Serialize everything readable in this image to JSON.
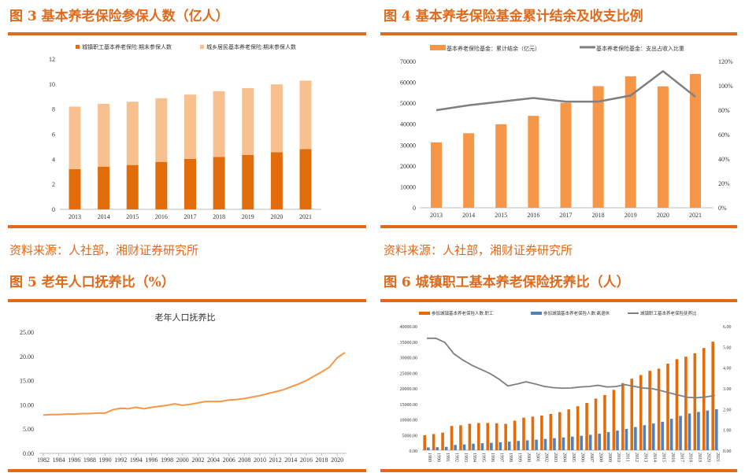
{
  "colors": {
    "accent": "#e0691a",
    "dark_orange": "#e36c0a",
    "light_orange": "#f9c08f",
    "bar_orange": "#f79646",
    "gray": "#7f7f7f",
    "blue": "#4f81bd"
  },
  "fig3": {
    "heading": "图 3 基本养老保险参保人数（亿人）",
    "source": "资料来源：人社部，湘财证券研究所"
  },
  "fig4": {
    "heading": "图 4 基本养老保险基金累计结余及收支比例",
    "source": "资料来源：人社部，湘财证券研究所"
  },
  "fig5": {
    "heading": "图 5 老年人口抚养比（%）"
  },
  "fig6": {
    "heading": "图 6 城镇职工基本养老保险抚养比（人）"
  },
  "chart_data": [
    {
      "type": "bar",
      "stacked": true,
      "title": "",
      "categories": [
        "2013",
        "2014",
        "2015",
        "2016",
        "2017",
        "2018",
        "2019",
        "2020",
        "2021"
      ],
      "series": [
        {
          "name": "城镇职工基本养老保险:期末参保人数",
          "values": [
            3.22,
            3.41,
            3.54,
            3.79,
            4.03,
            4.19,
            4.35,
            4.56,
            4.81
          ]
        },
        {
          "name": "城乡居民基本养老保险:期末参保人数",
          "values": [
            4.98,
            5.01,
            5.05,
            5.08,
            5.13,
            5.24,
            5.33,
            5.42,
            5.47
          ]
        }
      ],
      "ylim": [
        0,
        12
      ],
      "yticks": [
        "0",
        "2",
        "4",
        "6",
        "8",
        "10",
        "12"
      ],
      "legend": "top",
      "grid": false
    },
    {
      "type": "bar+line",
      "title": "",
      "categories": [
        "2013",
        "2014",
        "2015",
        "2016",
        "2017",
        "2018",
        "2019",
        "2020",
        "2021"
      ],
      "series": [
        {
          "name": "基本养老保险基金：累计结余（亿元）",
          "type": "bar",
          "axis": "left",
          "values": [
            31275,
            35645,
            39937,
            43965,
            50202,
            58152,
            62873,
            58075,
            63970
          ]
        },
        {
          "name": "基本养老保险基金：支出占收入比重",
          "type": "line",
          "axis": "right",
          "values": [
            80,
            84,
            87,
            90,
            87,
            87,
            92,
            112,
            91
          ]
        }
      ],
      "ylim": [
        0,
        70000
      ],
      "yticks": [
        "0",
        "10000",
        "20000",
        "30000",
        "40000",
        "50000",
        "60000",
        "70000"
      ],
      "y2lim": [
        0,
        120
      ],
      "y2ticks": [
        "0%",
        "20%",
        "40%",
        "60%",
        "80%",
        "100%",
        "120%"
      ],
      "legend": "top",
      "grid": false
    },
    {
      "type": "line",
      "title": "老年人口抚养比",
      "x": [
        1982,
        1983,
        1984,
        1985,
        1986,
        1987,
        1988,
        1989,
        1990,
        1991,
        1992,
        1993,
        1994,
        1995,
        1996,
        1997,
        1998,
        1999,
        2000,
        2001,
        2002,
        2003,
        2004,
        2005,
        2006,
        2007,
        2008,
        2009,
        2010,
        2011,
        2012,
        2013,
        2014,
        2015,
        2016,
        2017,
        2018,
        2019,
        2020,
        2021
      ],
      "values": [
        7.9,
        8.0,
        8.0,
        8.1,
        8.1,
        8.2,
        8.2,
        8.3,
        8.3,
        9.0,
        9.3,
        9.2,
        9.5,
        9.2,
        9.5,
        9.7,
        9.9,
        10.2,
        9.9,
        10.1,
        10.4,
        10.7,
        10.7,
        10.7,
        11.0,
        11.1,
        11.3,
        11.6,
        11.9,
        12.3,
        12.7,
        13.1,
        13.7,
        14.3,
        15.0,
        15.9,
        16.8,
        17.8,
        19.7,
        20.8
      ],
      "xticks": [
        "1982",
        "1984",
        "1986",
        "1988",
        "1990",
        "1992",
        "1994",
        "1996",
        "1998",
        "2000",
        "2002",
        "2004",
        "2006",
        "2008",
        "2010",
        "2012",
        "2014",
        "2016",
        "2018",
        "2020"
      ],
      "ylim": [
        0,
        25
      ],
      "yticks": [
        "0.00",
        "5.00",
        "10.00",
        "15.00",
        "20.00",
        "25.00"
      ],
      "grid": false
    },
    {
      "type": "bar+line",
      "title": "",
      "categories": [
        "1989",
        "1990",
        "1991",
        "1992",
        "1993",
        "1994",
        "1995",
        "1996",
        "1997",
        "1998",
        "1999",
        "2000",
        "2001",
        "2002",
        "2003",
        "2004",
        "2005",
        "2006",
        "2007",
        "2008",
        "2009",
        "2010",
        "2011",
        "2012",
        "2013",
        "2014",
        "2015",
        "2016",
        "2017",
        "2018",
        "2019",
        "2020",
        "2021"
      ],
      "series": [
        {
          "name": "参加城镇基本养老保险人数:职工",
          "type": "bar",
          "axis": "left",
          "values": [
            4800,
            5200,
            5650,
            7800,
            8000,
            8500,
            8750,
            8750,
            8670,
            8480,
            9500,
            10450,
            10800,
            11130,
            11650,
            12250,
            13120,
            14130,
            15180,
            16590,
            17740,
            19400,
            21570,
            22980,
            24180,
            25530,
            26220,
            27830,
            29270,
            30100,
            31180,
            32860,
            34920
          ]
        },
        {
          "name": "参加城镇基本养老保险人数:离退休",
          "type": "bar",
          "axis": "left",
          "values": [
            890,
            960,
            1090,
            1680,
            1840,
            2080,
            2240,
            2360,
            2530,
            2730,
            2980,
            3170,
            3380,
            3610,
            3860,
            4100,
            4370,
            4640,
            4950,
            5300,
            5810,
            6310,
            6830,
            7450,
            8040,
            8590,
            9140,
            10100,
            11030,
            11800,
            12310,
            12760,
            13160
          ]
        },
        {
          "name": "城镇职工基本养老保险抚养比",
          "type": "line",
          "axis": "right",
          "values": [
            5.4,
            5.4,
            5.2,
            4.65,
            4.35,
            4.1,
            3.9,
            3.7,
            3.43,
            3.1,
            3.19,
            3.3,
            3.2,
            3.08,
            3.02,
            2.99,
            3.0,
            3.05,
            3.07,
            3.13,
            3.05,
            3.07,
            3.16,
            3.08,
            3.0,
            2.97,
            2.87,
            2.76,
            2.65,
            2.55,
            2.53,
            2.57,
            2.65
          ]
        }
      ],
      "ylim": [
        0,
        40000
      ],
      "yticks": [
        "0.00",
        "5000.00",
        "10000.00",
        "15000.00",
        "20000.00",
        "25000.00",
        "30000.00",
        "35000.00",
        "40000.00"
      ],
      "y2lim": [
        0,
        6
      ],
      "y2ticks": [
        "0.00",
        "1.00",
        "2.00",
        "3.00",
        "4.00",
        "5.00",
        "6.00"
      ],
      "legend": "top",
      "grid": false
    }
  ]
}
